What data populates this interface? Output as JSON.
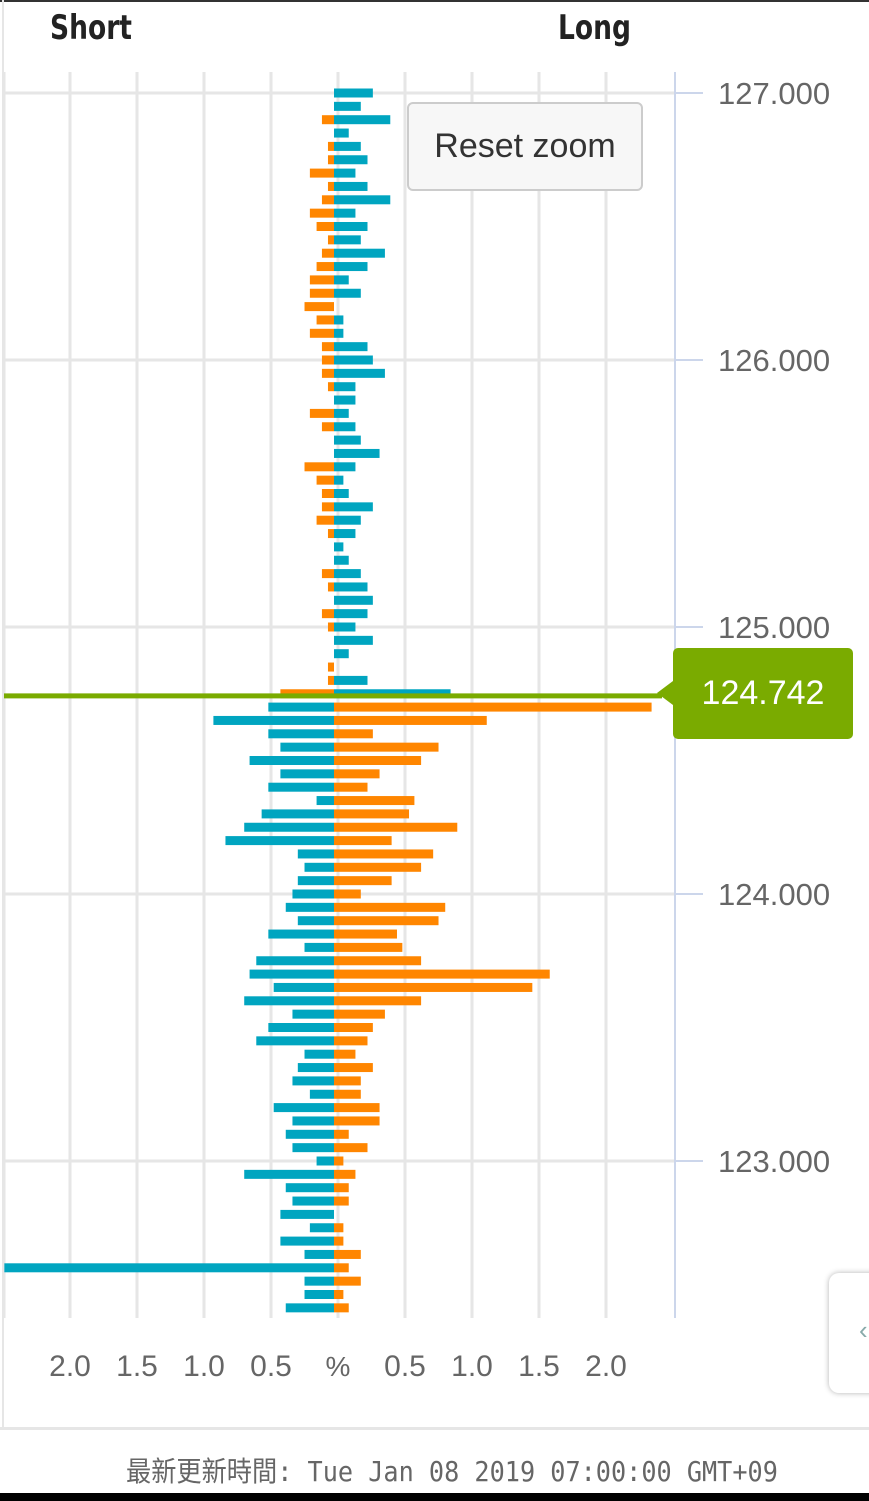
{
  "header": {
    "short_label": "Short",
    "long_label": "Long"
  },
  "reset_zoom_label": "Reset zoom",
  "footer": {
    "updated_text": "最新更新時間: Tue Jan 08 2019 07:00:00 GMT+09"
  },
  "side_panel": {
    "arrow_icon": "‹"
  },
  "chart_data": {
    "type": "bar",
    "orientation": "horizontal-diverging",
    "current_price": 124.742,
    "current_price_label": "124.742",
    "current_price_color": "#7aab00",
    "colors": {
      "blue": "#00a5c0",
      "orange": "#ff8600"
    },
    "color_rule": "above current price: short orange, long blue; below: short blue, long orange",
    "x_ticks_left": [
      "2.0",
      "1.5",
      "1.0",
      "0.5"
    ],
    "x_center_label": "%",
    "x_ticks_right": [
      "0.5",
      "1.0",
      "1.5",
      "2.0"
    ],
    "xlim": [
      -2.5,
      2.5
    ],
    "y_ticks": [
      "127.000",
      "126.000",
      "125.000",
      "124.000",
      "123.000"
    ],
    "y_tick_values": [
      127,
      126,
      125,
      124,
      123
    ],
    "ylim": [
      122.4,
      127.08
    ],
    "grid": true,
    "prices": [
      127.0,
      126.95,
      126.9,
      126.85,
      126.8,
      126.75,
      126.7,
      126.65,
      126.6,
      126.55,
      126.5,
      126.45,
      126.4,
      126.35,
      126.3,
      126.25,
      126.2,
      126.15,
      126.1,
      126.05,
      126.0,
      125.95,
      125.9,
      125.85,
      125.8,
      125.75,
      125.7,
      125.65,
      125.6,
      125.55,
      125.5,
      125.45,
      125.4,
      125.35,
      125.3,
      125.25,
      125.2,
      125.15,
      125.1,
      125.05,
      125.0,
      124.95,
      124.9,
      124.85,
      124.8,
      124.75,
      124.7,
      124.65,
      124.6,
      124.55,
      124.5,
      124.45,
      124.4,
      124.35,
      124.3,
      124.25,
      124.2,
      124.15,
      124.1,
      124.05,
      124.0,
      123.95,
      123.9,
      123.85,
      123.8,
      123.75,
      123.7,
      123.65,
      123.6,
      123.55,
      123.5,
      123.45,
      123.4,
      123.35,
      123.3,
      123.25,
      123.2,
      123.15,
      123.1,
      123.05,
      123.0,
      122.95,
      122.9,
      122.85,
      122.8,
      122.75,
      122.7,
      122.65,
      122.6,
      122.55,
      122.5,
      122.45
    ],
    "series": [
      {
        "name": "Short",
        "values": [
          0,
          0,
          0.09,
          0,
          0.045,
          0.045,
          0.18,
          0.045,
          0.09,
          0.18,
          0.13,
          0.045,
          0.09,
          0.13,
          0.18,
          0.18,
          0.22,
          0.13,
          0.18,
          0.09,
          0.09,
          0.09,
          0.045,
          0,
          0.18,
          0.09,
          0,
          0,
          0.22,
          0.13,
          0.09,
          0.09,
          0.13,
          0.045,
          0,
          0,
          0.09,
          0.045,
          0,
          0.09,
          0.045,
          0,
          0,
          0.045,
          0.045,
          0.4,
          0.49,
          0.9,
          0.49,
          0.4,
          0.63,
          0.4,
          0.49,
          0.13,
          0.54,
          0.67,
          0.81,
          0.27,
          0.22,
          0.27,
          0.31,
          0.36,
          0.27,
          0.49,
          0.22,
          0.58,
          0.63,
          0.45,
          0.67,
          0.31,
          0.49,
          0.58,
          0.22,
          0.27,
          0.31,
          0.18,
          0.45,
          0.31,
          0.36,
          0.31,
          0.13,
          0.67,
          0.36,
          0.31,
          0.4,
          0.18,
          0.4,
          0.22,
          2.46,
          0.22,
          0.22,
          0.36
        ]
      },
      {
        "name": "Long",
        "values": [
          0.29,
          0.2,
          0.42,
          0.11,
          0.2,
          0.25,
          0.16,
          0.25,
          0.42,
          0.16,
          0.25,
          0.2,
          0.38,
          0.25,
          0.11,
          0.2,
          0,
          0.07,
          0.07,
          0.25,
          0.29,
          0.38,
          0.16,
          0.16,
          0.11,
          0.16,
          0.2,
          0.34,
          0.16,
          0.07,
          0.11,
          0.29,
          0.2,
          0.16,
          0.07,
          0.11,
          0.2,
          0.25,
          0.29,
          0.25,
          0.16,
          0.29,
          0.11,
          0,
          0.25,
          0.87,
          2.37,
          1.14,
          0.29,
          0.78,
          0.65,
          0.34,
          0.25,
          0.6,
          0.56,
          0.92,
          0.43,
          0.74,
          0.65,
          0.43,
          0.2,
          0.83,
          0.78,
          0.47,
          0.51,
          0.65,
          1.61,
          1.48,
          0.65,
          0.38,
          0.29,
          0.25,
          0.16,
          0.29,
          0.2,
          0.2,
          0.34,
          0.34,
          0.11,
          0.25,
          0.07,
          0.16,
          0.11,
          0.11,
          0,
          0.07,
          0.07,
          0.2,
          0.11,
          0.2,
          0.07,
          0.11
        ]
      }
    ]
  }
}
